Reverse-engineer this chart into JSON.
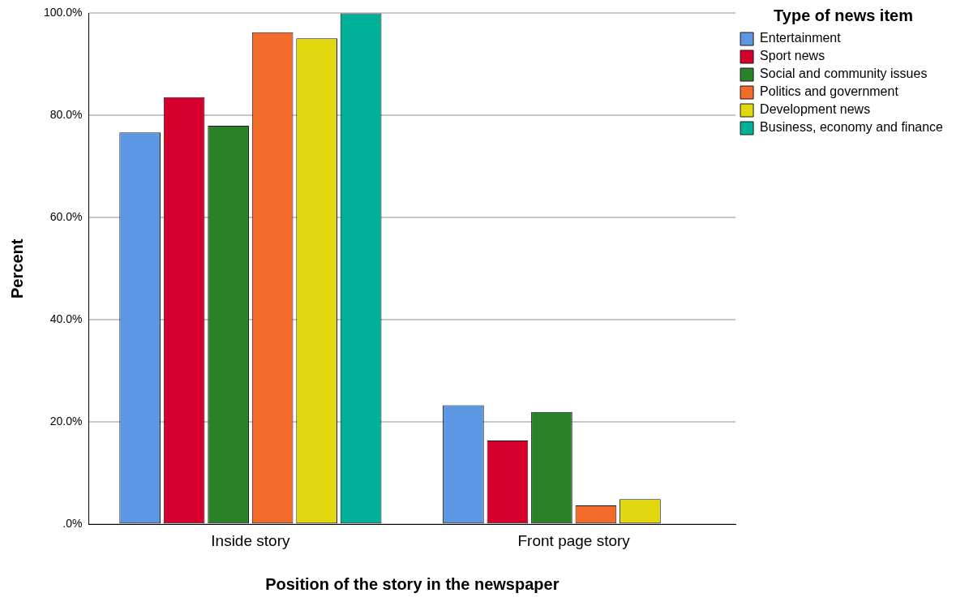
{
  "chart_data": {
    "type": "bar",
    "xlabel": "Position of the story in the newspaper",
    "ylabel": "Percent",
    "legend_title": "Type of news item",
    "categories": [
      "Inside story",
      "Front page story"
    ],
    "series": [
      {
        "name": "Entertainment",
        "color": "#5b97e3",
        "values": [
          76.7,
          23.3
        ]
      },
      {
        "name": "Sport news",
        "color": "#d7002d",
        "values": [
          83.6,
          16.4
        ]
      },
      {
        "name": "Social and community issues",
        "color": "#2a8128",
        "values": [
          78.0,
          22.0
        ]
      },
      {
        "name": "Politics and government",
        "color": "#f26b2b",
        "values": [
          96.3,
          3.7
        ]
      },
      {
        "name": "Development news",
        "color": "#e2d80f",
        "values": [
          95.1,
          4.9
        ]
      },
      {
        "name": "Business, economy and finance",
        "color": "#00b09b",
        "values": [
          100,
          0
        ]
      }
    ],
    "ylim": [
      0,
      100
    ],
    "yticks": [
      {
        "value": 0,
        "label": ".0%"
      },
      {
        "value": 20,
        "label": "20.0%"
      },
      {
        "value": 40,
        "label": "40.0%"
      },
      {
        "value": 60,
        "label": "60.0%"
      },
      {
        "value": 80,
        "label": "80.0%"
      },
      {
        "value": 100,
        "label": "100.0%"
      }
    ],
    "grid": "y",
    "legend": "top right"
  }
}
